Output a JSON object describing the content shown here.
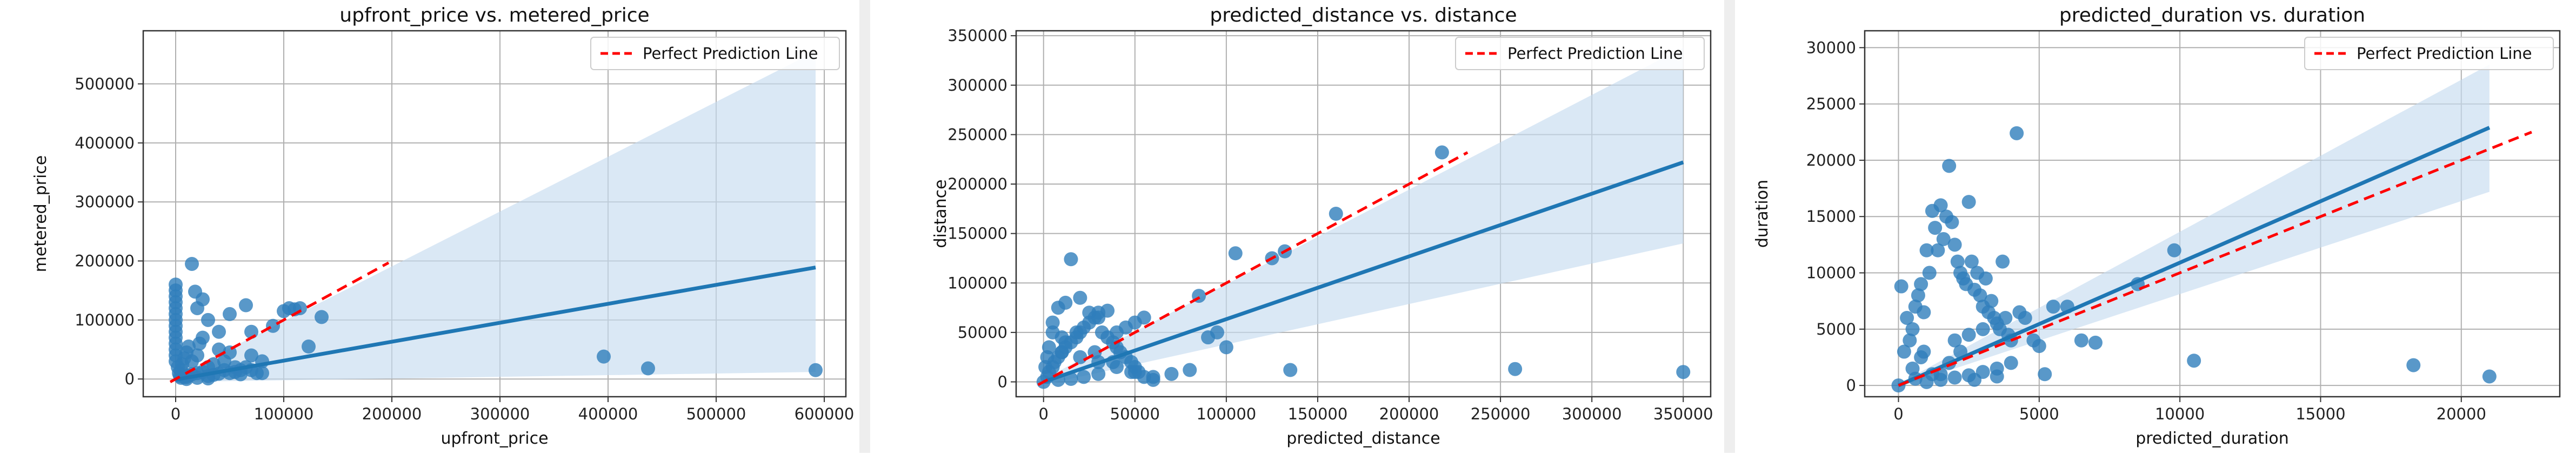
{
  "chart_data": [
    {
      "type": "scatter",
      "title": "upfront_price vs. metered_price",
      "xlabel": "upfront_price",
      "ylabel": "metered_price",
      "xlim": [
        -30000,
        620000
      ],
      "ylim": [
        -30000,
        590000
      ],
      "x_ticks": [
        0,
        100000,
        200000,
        300000,
        400000,
        500000,
        600000
      ],
      "y_ticks": [
        0,
        100000,
        200000,
        300000,
        400000,
        500000
      ],
      "grid": true,
      "legend": {
        "position": "top-right",
        "entries": [
          "Perfect Prediction Line"
        ]
      },
      "colors": {
        "points": "#2f7ebc",
        "regression": "#1f77b4",
        "ci_band": "#c6dbef",
        "perfect_line": "#ff0000"
      },
      "points": {
        "x": [
          0,
          0,
          0,
          0,
          0,
          0,
          0,
          0,
          0,
          0,
          0,
          0,
          0,
          0,
          2000,
          3000,
          4000,
          5000,
          6000,
          8000,
          10000,
          12000,
          15000,
          18000,
          20000,
          25000,
          30000,
          40000,
          50000,
          65000,
          70000,
          90000,
          100000,
          105000,
          110000,
          115000,
          123000,
          135000,
          15000,
          20000,
          22000,
          25000,
          30000,
          35000,
          40000,
          45000,
          50000,
          55000,
          60000,
          70000,
          80000,
          5000,
          8000,
          10000,
          12000,
          15000,
          20000,
          25000,
          30000,
          35000,
          40000,
          45000,
          50000,
          55000,
          60000,
          65000,
          70000,
          75000,
          80000,
          10000,
          20000,
          30000,
          396000,
          437000,
          592000
        ],
        "y": [
          160000,
          150000,
          140000,
          130000,
          120000,
          110000,
          100000,
          90000,
          80000,
          70000,
          60000,
          50000,
          40000,
          30000,
          20000,
          10000,
          5000,
          15000,
          25000,
          35000,
          45000,
          55000,
          195000,
          148000,
          120000,
          135000,
          100000,
          80000,
          110000,
          125000,
          80000,
          90000,
          115000,
          120000,
          118000,
          120000,
          55000,
          105000,
          30000,
          40000,
          60000,
          70000,
          20000,
          25000,
          50000,
          30000,
          45000,
          20000,
          15000,
          40000,
          10000,
          2000,
          4000,
          3000,
          6000,
          8000,
          10000,
          12000,
          5000,
          7000,
          9000,
          15000,
          10000,
          12000,
          8000,
          20000,
          15000,
          10000,
          30000,
          0,
          2000,
          1000,
          38000,
          18000,
          15000
        ]
      },
      "regression": {
        "x": [
          0,
          592000
        ],
        "y": [
          -1000,
          189000
        ],
        "ci_lower": [
          -5000,
          12000
        ],
        "ci_upper": [
          5000,
          555000
        ]
      },
      "perfect_line": {
        "x": [
          -5000,
          197000
        ],
        "y": [
          -5000,
          197000
        ]
      }
    },
    {
      "type": "scatter",
      "title": "predicted_distance vs. distance",
      "xlabel": "predicted_distance",
      "ylabel": "distance",
      "xlim": [
        -15000,
        365000
      ],
      "ylim": [
        -15000,
        355000
      ],
      "x_ticks": [
        0,
        50000,
        100000,
        150000,
        200000,
        250000,
        300000,
        350000
      ],
      "y_ticks": [
        0,
        50000,
        100000,
        150000,
        200000,
        250000,
        300000,
        350000
      ],
      "grid": true,
      "legend": {
        "position": "top-right",
        "entries": [
          "Perfect Prediction Line"
        ]
      },
      "colors": {
        "points": "#2f7ebc",
        "regression": "#1f77b4",
        "ci_band": "#c6dbef",
        "perfect_line": "#ff0000"
      },
      "points": {
        "x": [
          0,
          2000,
          3000,
          5000,
          6000,
          8000,
          10000,
          12000,
          15000,
          18000,
          20000,
          22000,
          25000,
          28000,
          30000,
          32000,
          35000,
          38000,
          40000,
          42000,
          45000,
          48000,
          50000,
          52000,
          55000,
          60000,
          5000,
          8000,
          12000,
          15000,
          20000,
          25000,
          30000,
          35000,
          40000,
          45000,
          50000,
          55000,
          10000,
          20000,
          30000,
          40000,
          50000,
          60000,
          70000,
          80000,
          95000,
          105000,
          125000,
          132000,
          160000,
          218000,
          135000,
          258000,
          350000,
          85000,
          90000,
          100000,
          8000,
          15000,
          22000,
          30000,
          12000,
          18000,
          28000,
          38000,
          48000,
          10000,
          5000,
          3000,
          2000,
          1000
        ],
        "y": [
          0,
          5000,
          10000,
          15000,
          20000,
          25000,
          30000,
          35000,
          40000,
          45000,
          50000,
          55000,
          60000,
          65000,
          70000,
          50000,
          45000,
          40000,
          35000,
          30000,
          25000,
          20000,
          15000,
          10000,
          5000,
          2000,
          60000,
          75000,
          80000,
          124000,
          85000,
          70000,
          65000,
          72000,
          50000,
          55000,
          60000,
          65000,
          30000,
          25000,
          20000,
          15000,
          10000,
          5000,
          8000,
          12000,
          50000,
          130000,
          125000,
          132000,
          170000,
          232000,
          12000,
          13000,
          10000,
          87000,
          45000,
          35000,
          2000,
          3000,
          5000,
          8000,
          40000,
          50000,
          30000,
          20000,
          10000,
          45000,
          50000,
          35000,
          25000,
          15000
        ]
      },
      "regression": {
        "x": [
          0,
          350000
        ],
        "y": [
          0,
          222000
        ],
        "ci_lower": [
          -3000,
          140000
        ],
        "ci_upper": [
          3000,
          338000
        ]
      },
      "perfect_line": {
        "x": [
          -3000,
          232000
        ],
        "y": [
          -3000,
          232000
        ]
      }
    },
    {
      "type": "scatter",
      "title": "predicted_duration vs. duration",
      "xlabel": "predicted_duration",
      "ylabel": "duration",
      "xlim": [
        -1200,
        23500
      ],
      "ylim": [
        -1000,
        31500
      ],
      "x_ticks": [
        0,
        5000,
        10000,
        15000,
        20000
      ],
      "y_ticks": [
        0,
        5000,
        10000,
        15000,
        20000,
        25000,
        30000
      ],
      "grid": true,
      "legend": {
        "position": "top-right",
        "entries": [
          "Perfect Prediction Line"
        ]
      },
      "colors": {
        "points": "#2f7ebc",
        "regression": "#1f77b4",
        "ci_band": "#c6dbef",
        "perfect_line": "#ff0000"
      },
      "points": {
        "x": [
          0,
          100,
          200,
          300,
          400,
          500,
          600,
          700,
          800,
          900,
          1000,
          1100,
          1200,
          1300,
          1400,
          1500,
          1600,
          1700,
          1800,
          1900,
          2000,
          2100,
          2200,
          2300,
          2400,
          2500,
          2600,
          2700,
          2800,
          2900,
          3000,
          3100,
          3200,
          3300,
          3400,
          3500,
          3600,
          3700,
          3800,
          3900,
          4000,
          4200,
          4300,
          4500,
          4800,
          5000,
          5200,
          5500,
          6000,
          6500,
          7000,
          8500,
          9800,
          10500,
          18300,
          21000,
          1800,
          2200,
          1500,
          2700,
          3500,
          500,
          800,
          1200,
          2000,
          2500,
          3000,
          1000,
          1500,
          2000,
          2500,
          3000,
          3500,
          4000,
          600,
          900
        ],
        "y": [
          0,
          8800,
          3000,
          6000,
          4000,
          5000,
          7000,
          8000,
          9000,
          6500,
          12000,
          10000,
          15500,
          14000,
          12000,
          16000,
          13000,
          15000,
          19500,
          14500,
          12500,
          11000,
          10000,
          9500,
          9000,
          16300,
          11000,
          8500,
          10000,
          8000,
          7000,
          9500,
          6500,
          7500,
          6000,
          5500,
          5000,
          11000,
          6000,
          4500,
          4000,
          22400,
          6500,
          6000,
          4000,
          3500,
          1000,
          7000,
          7000,
          4000,
          3800,
          9000,
          12000,
          2200,
          1800,
          800,
          2000,
          3000,
          1000,
          500,
          800,
          1500,
          2500,
          1000,
          4000,
          4500,
          5000,
          300,
          500,
          700,
          900,
          1200,
          1500,
          2000,
          600,
          3000
        ]
      },
      "regression": {
        "x": [
          0,
          21000
        ],
        "y": [
          0,
          22900
        ],
        "ci_lower": [
          -150,
          17200
        ],
        "ci_upper": [
          150,
          28500
        ]
      },
      "perfect_line": {
        "x": [
          0,
          22500
        ],
        "y": [
          0,
          22500
        ]
      }
    }
  ]
}
